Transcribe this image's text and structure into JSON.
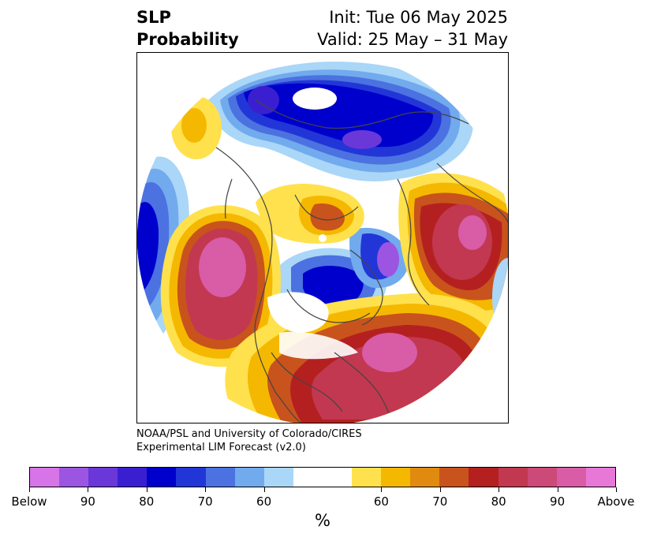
{
  "title": {
    "left_line1": "SLP",
    "left_line2": "Probability",
    "right_line1": "Init: Tue 06 May 2025",
    "right_line2": "Valid: 25 May – 31 May"
  },
  "credit": {
    "line1": "NOAA/PSL and University of Colorado/CIRES",
    "line2": "Experimental LIM Forecast (v2.0)"
  },
  "colorbar": {
    "colors": [
      "#d674e8",
      "#9c55e0",
      "#6a37d8",
      "#3a1fd0",
      "#0000cc",
      "#2236d8",
      "#4b72e0",
      "#72aaee",
      "#aad6f8",
      "#ffffff",
      "#ffffff",
      "#ffe14d",
      "#f5b800",
      "#e08a10",
      "#c9531c",
      "#b42020",
      "#c23850",
      "#cc4a78",
      "#d85ca6",
      "#e878d8"
    ],
    "labels": [
      "Below",
      "90",
      "80",
      "70",
      "60",
      "60",
      "70",
      "80",
      "90",
      "Above"
    ],
    "unit": "%"
  },
  "map": {
    "projection": "north-polar-stereographic",
    "palette": {
      "above_low": "#ffe14d",
      "above_mid": "#f5b800",
      "above_orange": "#e08a10",
      "above_rust": "#c9531c",
      "above_red": "#b42020",
      "above_crimson": "#c23850",
      "above_pink": "#d85ca6",
      "above_top": "#e878d8",
      "below_low": "#aad6f8",
      "below_mid": "#72aaee",
      "below_blue": "#4b72e0",
      "below_royal": "#2236d8",
      "below_navy": "#0000cc",
      "below_indigo": "#3a1fd0",
      "below_violet": "#6a37d8",
      "below_top": "#9c55e0"
    }
  }
}
